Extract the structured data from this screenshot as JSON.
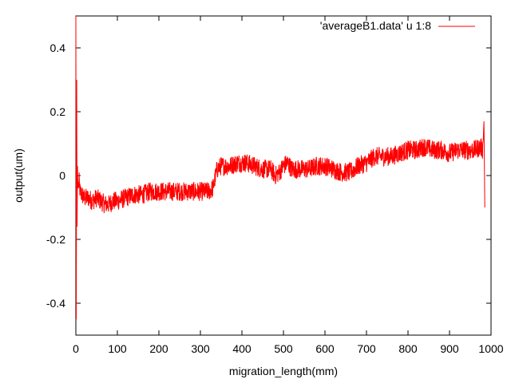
{
  "chart_data": {
    "type": "line",
    "xlabel": "migration_length(mm)",
    "ylabel": "output(um)",
    "xlim": [
      0,
      1000
    ],
    "ylim": [
      -0.5,
      0.5
    ],
    "x_ticks": [
      0,
      100,
      200,
      300,
      400,
      500,
      600,
      700,
      800,
      900,
      1000
    ],
    "x_tick_labels": [
      "0",
      "100",
      "200",
      "300",
      "400",
      "500",
      "600",
      "700",
      "800",
      "900",
      "1000"
    ],
    "y_ticks": [
      -0.4,
      -0.2,
      0,
      0.2,
      0.4
    ],
    "y_tick_labels": [
      "-0.4",
      "-0.2",
      "0",
      "0.2",
      "0.4"
    ],
    "grid": false,
    "legend_position": "top-right",
    "series": [
      {
        "name": "'averageB1.data' u 1:8",
        "color": "#ff0000",
        "points": [
          [
            0,
            0.5
          ],
          [
            1,
            -0.45
          ],
          [
            2,
            0.3
          ],
          [
            3,
            -0.16
          ],
          [
            4,
            0.03
          ],
          [
            5,
            -0.04
          ],
          [
            8,
            -0.02
          ],
          [
            10,
            -0.05
          ],
          [
            15,
            -0.06
          ],
          [
            20,
            -0.07
          ],
          [
            30,
            -0.07
          ],
          [
            40,
            -0.08
          ],
          [
            50,
            -0.07
          ],
          [
            60,
            -0.08
          ],
          [
            70,
            -0.09
          ],
          [
            80,
            -0.09
          ],
          [
            90,
            -0.08
          ],
          [
            100,
            -0.08
          ],
          [
            120,
            -0.07
          ],
          [
            140,
            -0.06
          ],
          [
            160,
            -0.06
          ],
          [
            180,
            -0.05
          ],
          [
            200,
            -0.05
          ],
          [
            220,
            -0.05
          ],
          [
            240,
            -0.05
          ],
          [
            260,
            -0.05
          ],
          [
            280,
            -0.05
          ],
          [
            300,
            -0.05
          ],
          [
            320,
            -0.05
          ],
          [
            330,
            -0.04
          ],
          [
            335,
            -0.01
          ],
          [
            340,
            0.02
          ],
          [
            350,
            0.03
          ],
          [
            370,
            0.03
          ],
          [
            390,
            0.04
          ],
          [
            410,
            0.04
          ],
          [
            430,
            0.03
          ],
          [
            450,
            0.02
          ],
          [
            470,
            0.02
          ],
          [
            480,
            0.0
          ],
          [
            490,
            0.01
          ],
          [
            500,
            0.03
          ],
          [
            510,
            0.04
          ],
          [
            520,
            0.02
          ],
          [
            540,
            0.02
          ],
          [
            560,
            0.02
          ],
          [
            580,
            0.03
          ],
          [
            600,
            0.03
          ],
          [
            620,
            0.02
          ],
          [
            640,
            0.01
          ],
          [
            660,
            0.01
          ],
          [
            680,
            0.03
          ],
          [
            700,
            0.04
          ],
          [
            720,
            0.06
          ],
          [
            740,
            0.06
          ],
          [
            760,
            0.06
          ],
          [
            780,
            0.07
          ],
          [
            800,
            0.08
          ],
          [
            820,
            0.08
          ],
          [
            840,
            0.09
          ],
          [
            860,
            0.08
          ],
          [
            880,
            0.08
          ],
          [
            900,
            0.07
          ],
          [
            920,
            0.08
          ],
          [
            940,
            0.08
          ],
          [
            960,
            0.08
          ],
          [
            975,
            0.09
          ],
          [
            980,
            0.08
          ],
          [
            983,
            0.17
          ],
          [
            985,
            -0.1
          ]
        ]
      }
    ]
  }
}
